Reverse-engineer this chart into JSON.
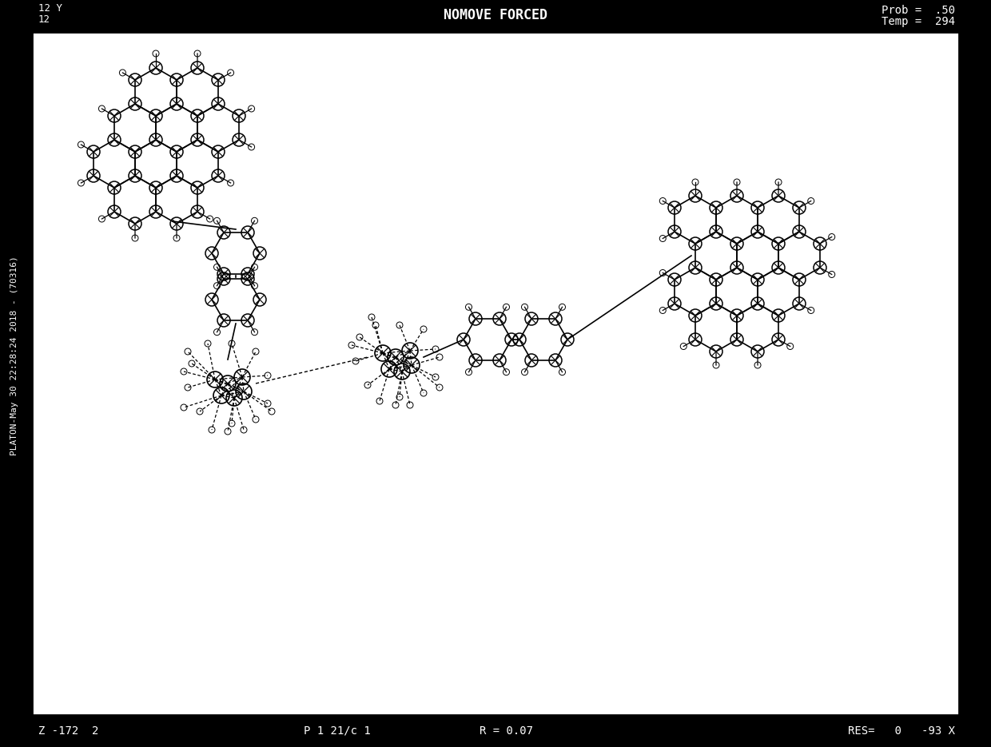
{
  "bg_color": "#c8c8c8",
  "inner_bg": "#ffffff",
  "top_text_center": "NOMOVE FORCED",
  "top_text_right1": "Prob =  .50",
  "top_text_right2": "Temp =  294",
  "left_label_top": "12 Y",
  "left_label_bot": "12",
  "bottom_left": "Z -172  2",
  "bottom_mid1": "P 1 21/c 1",
  "bottom_mid2": "R = 0.07",
  "bottom_right": "RES=   0   -93 X",
  "left_side_text": "PLATON-May 30 22:28:24 2018 - (70316)"
}
